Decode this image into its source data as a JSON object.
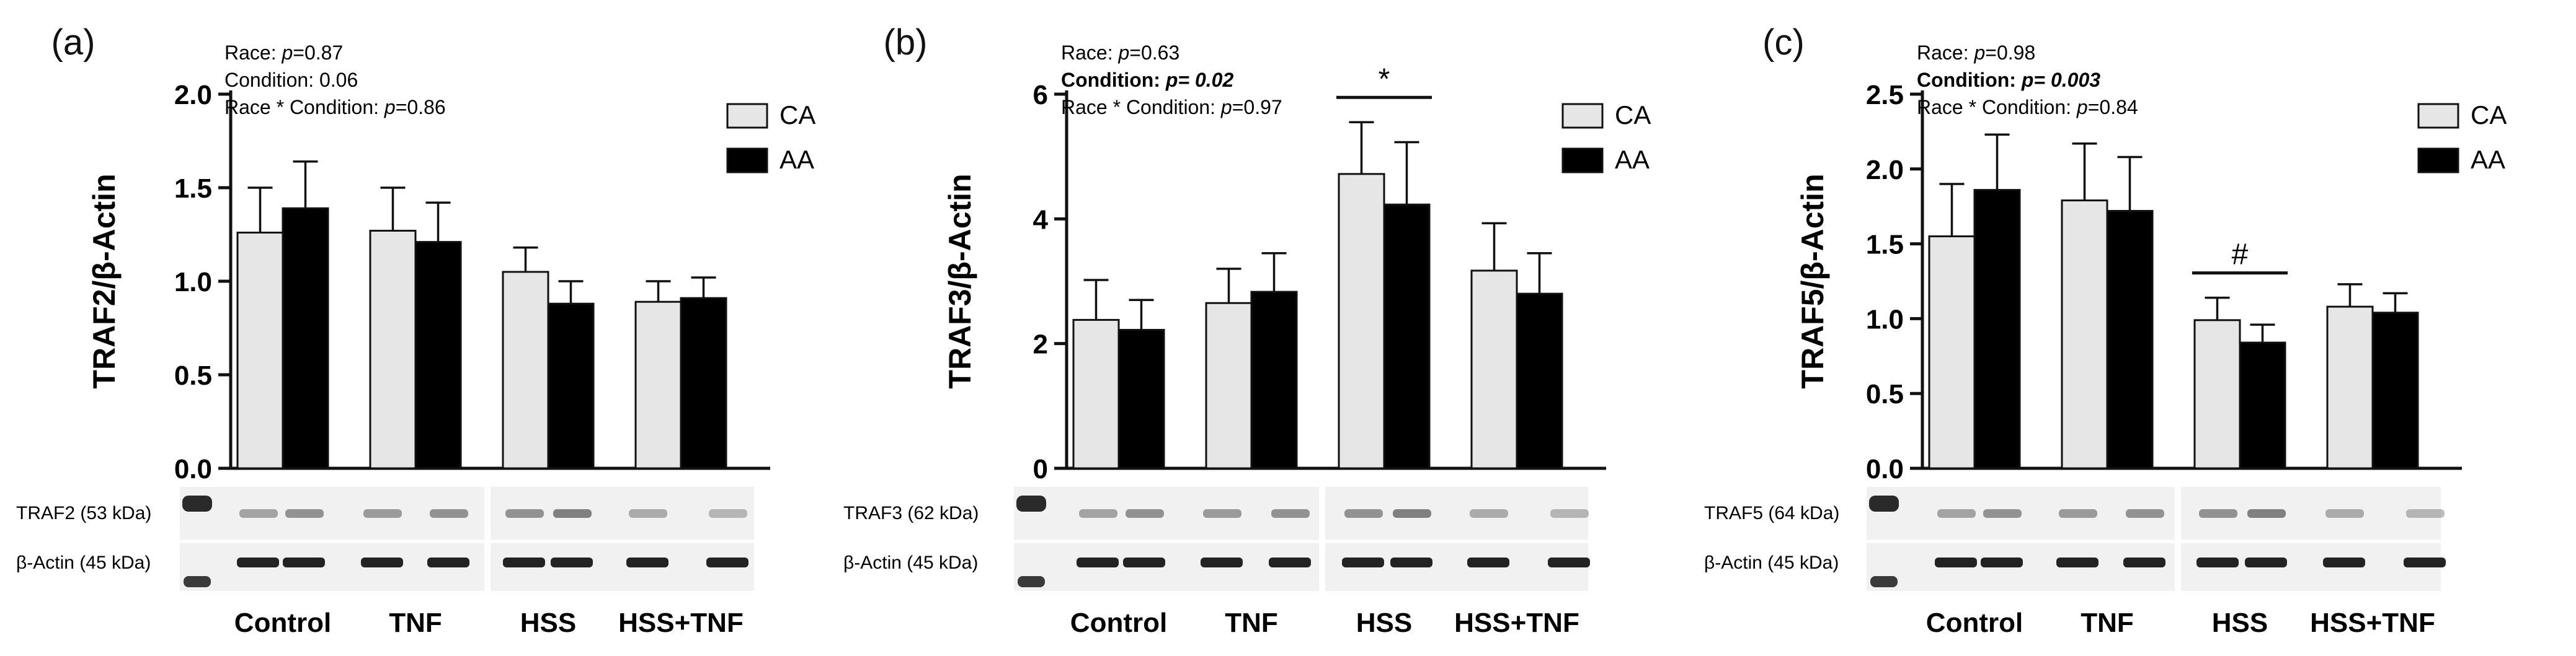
{
  "chart_data": [
    {
      "type": "bar",
      "panel_label": "(a)",
      "ylabel": "TRAF2/β-Actin",
      "ylim": [
        0,
        2.0
      ],
      "yticks": [
        "0.0",
        "0.5",
        "1.0",
        "1.5",
        "2.0"
      ],
      "categories": [
        "Control",
        "TNF",
        "HSS",
        "HSS+TNF"
      ],
      "series": [
        {
          "name": "CA",
          "color": "#e6e6e6",
          "values": [
            1.26,
            1.27,
            1.05,
            0.89
          ],
          "errors": [
            0.24,
            0.23,
            0.13,
            0.11
          ]
        },
        {
          "name": "AA",
          "color": "#000000",
          "values": [
            1.39,
            1.21,
            0.88,
            0.91
          ],
          "errors": [
            0.25,
            0.21,
            0.12,
            0.11
          ]
        }
      ],
      "stats": [
        {
          "pre": "Race: ",
          "p": "p",
          "post": "=0.87",
          "bold": false
        },
        {
          "pre": "Condition:  0.06",
          "p": "",
          "post": "",
          "bold": false
        },
        {
          "pre": "Race * Condition: ",
          "p": "p",
          "post": "=0.86",
          "bold": false
        }
      ],
      "significance": null,
      "blot_labels": [
        "TRAF2 (53 kDa)",
        "β-Actin (45 kDa)"
      ],
      "legend_position": "top-right"
    },
    {
      "type": "bar",
      "panel_label": "(b)",
      "ylabel": "TRAF3/β-Actin",
      "ylim": [
        0,
        6
      ],
      "yticks": [
        "0",
        "2",
        "4",
        "6"
      ],
      "categories": [
        "Control",
        "TNF",
        "HSS",
        "HSS+TNF"
      ],
      "series": [
        {
          "name": "CA",
          "color": "#e6e6e6",
          "values": [
            2.38,
            2.65,
            4.72,
            3.17
          ],
          "errors": [
            0.64,
            0.55,
            0.83,
            0.76
          ]
        },
        {
          "name": "AA",
          "color": "#000000",
          "values": [
            2.22,
            2.83,
            4.23,
            2.8
          ],
          "errors": [
            0.48,
            0.62,
            1.0,
            0.65
          ]
        }
      ],
      "stats": [
        {
          "pre": "Race: ",
          "p": "p",
          "post": "=0.63",
          "bold": false
        },
        {
          "pre": "Condition: ",
          "p": "p= 0.02",
          "post": "",
          "bold": true
        },
        {
          "pre": "Race * Condition: ",
          "p": "p",
          "post": "=0.97",
          "bold": false
        }
      ],
      "significance": {
        "category_index": 2,
        "symbol": "*"
      },
      "blot_labels": [
        "TRAF3 (62 kDa)",
        "β-Actin (45 kDa)"
      ],
      "legend_position": "top-right"
    },
    {
      "type": "bar",
      "panel_label": "(c)",
      "ylabel": "TRAF5/β-Actin",
      "ylim": [
        0,
        2.5
      ],
      "yticks": [
        "0.0",
        "0.5",
        "1.0",
        "1.5",
        "2.0",
        "2.5"
      ],
      "categories": [
        "Control",
        "TNF",
        "HSS",
        "HSS+TNF"
      ],
      "series": [
        {
          "name": "CA",
          "color": "#e6e6e6",
          "values": [
            1.55,
            1.79,
            0.99,
            1.08
          ],
          "errors": [
            0.35,
            0.38,
            0.15,
            0.15
          ]
        },
        {
          "name": "AA",
          "color": "#000000",
          "values": [
            1.86,
            1.72,
            0.84,
            1.04
          ],
          "errors": [
            0.37,
            0.36,
            0.12,
            0.13
          ]
        }
      ],
      "stats": [
        {
          "pre": "Race: ",
          "p": "p",
          "post": "=0.98",
          "bold": false
        },
        {
          "pre": "Condition: ",
          "p": "p= 0.003",
          "post": "",
          "bold": true
        },
        {
          "pre": "Race * Condition: ",
          "p": "p",
          "post": "=0.84",
          "bold": false
        }
      ],
      "significance": {
        "category_index": 2,
        "symbol": "#"
      },
      "blot_labels": [
        "TRAF5 (64 kDa)",
        "β-Actin (45 kDa)"
      ],
      "legend_position": "top-right"
    }
  ]
}
